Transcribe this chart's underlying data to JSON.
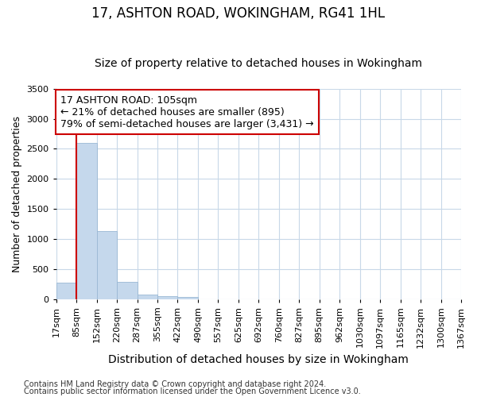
{
  "title": "17, ASHTON ROAD, WOKINGHAM, RG41 1HL",
  "subtitle": "Size of property relative to detached houses in Wokingham",
  "xlabel": "Distribution of detached houses by size in Wokingham",
  "ylabel": "Number of detached properties",
  "footnote1": "Contains HM Land Registry data © Crown copyright and database right 2024.",
  "footnote2": "Contains public sector information licensed under the Open Government Licence v3.0.",
  "bin_labels": [
    "17sqm",
    "85sqm",
    "152sqm",
    "220sqm",
    "287sqm",
    "355sqm",
    "422sqm",
    "490sqm",
    "557sqm",
    "625sqm",
    "692sqm",
    "760sqm",
    "827sqm",
    "895sqm",
    "962sqm",
    "1030sqm",
    "1097sqm",
    "1165sqm",
    "1232sqm",
    "1300sqm",
    "1367sqm"
  ],
  "bar_values": [
    270,
    2600,
    1130,
    280,
    80,
    50,
    35,
    0,
    0,
    0,
    0,
    0,
    0,
    0,
    0,
    0,
    0,
    0,
    0,
    0
  ],
  "bar_color": "#c5d8ec",
  "bar_edge_color": "#9ab8d4",
  "grid_color": "#c8d8e8",
  "plot_bg_color": "#ffffff",
  "fig_bg_color": "#ffffff",
  "annotation_text": "17 ASHTON ROAD: 105sqm\n← 21% of detached houses are smaller (895)\n79% of semi-detached houses are larger (3,431) →",
  "annotation_box_facecolor": "#ffffff",
  "annotation_box_edgecolor": "#cc0000",
  "red_line_x": 1,
  "ylim": [
    0,
    3500
  ],
  "yticks": [
    0,
    500,
    1000,
    1500,
    2000,
    2500,
    3000,
    3500
  ],
  "title_fontsize": 12,
  "subtitle_fontsize": 10,
  "ylabel_fontsize": 9,
  "xlabel_fontsize": 10,
  "tick_fontsize": 8,
  "annot_fontsize": 9,
  "footnote_fontsize": 7
}
